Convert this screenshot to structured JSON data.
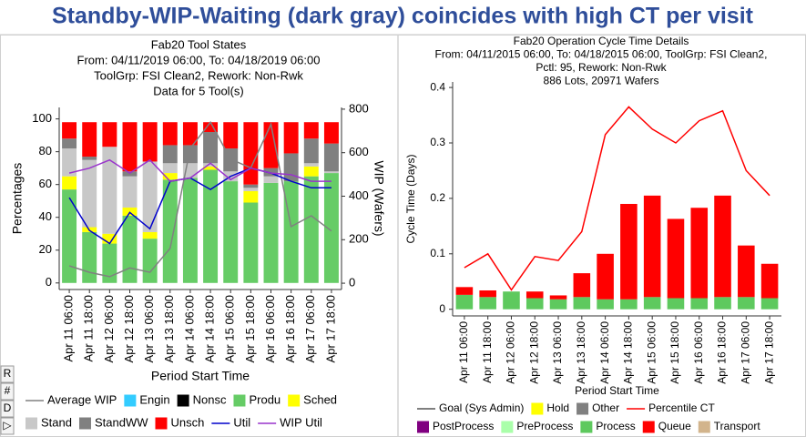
{
  "header": {
    "title": "Standby-WIP-Waiting (dark gray) coincides with high CT per visit"
  },
  "toolbar": [
    "R",
    "#",
    "D",
    "▷"
  ],
  "chart_data": [
    {
      "type": "bar",
      "stacked": true,
      "title_lines": [
        "Fab20 Tool States",
        "From: 04/11/2019 06:00, To: 04/18/2019 06:00",
        "ToolGrp: FSI Clean2, Rework: Non-Rwk",
        "Data for 5 Tool(s)"
      ],
      "xlabel": "Period Start Time",
      "ylabel": "Percentages",
      "y2label": "WIP (Wafers)",
      "categories": [
        "Apr 11 06:00",
        "Apr 11 18:00",
        "Apr 12 06:00",
        "Apr 12 18:00",
        "Apr 13 06:00",
        "Apr 13 18:00",
        "Apr 14 06:00",
        "Apr 14 18:00",
        "Apr 15 06:00",
        "Apr 15 18:00",
        "Apr 16 06:00",
        "Apr 16 18:00",
        "Apr 17 06:00",
        "Apr 17 18:00"
      ],
      "ylim": [
        -4,
        107
      ],
      "yticks": [
        0,
        20,
        40,
        60,
        80,
        100
      ],
      "y2lim": [
        -29,
        808
      ],
      "y2ticks": [
        0,
        200,
        400,
        600,
        800
      ],
      "series": [
        {
          "name": "Average WIP",
          "kind": "line",
          "axis": "y2",
          "color": "#808080",
          "values": [
            80,
            50,
            30,
            70,
            50,
            160,
            620,
            740,
            570,
            530,
            730,
            260,
            310,
            240
          ]
        },
        {
          "name": "Engin",
          "kind": "bar",
          "color": "#33ccff",
          "values": [
            0,
            0,
            0,
            0,
            0,
            0,
            0,
            0,
            0,
            0,
            0,
            0,
            0,
            0
          ]
        },
        {
          "name": "Nonsc",
          "kind": "bar",
          "color": "#000000",
          "values": [
            0,
            0,
            0,
            0,
            0,
            0,
            0,
            0,
            0,
            0,
            0,
            0,
            0,
            0
          ]
        },
        {
          "name": "Produ",
          "kind": "bar",
          "color": "#66cc66",
          "values": [
            57,
            31,
            24,
            41,
            27,
            63,
            64,
            69,
            62,
            49,
            61,
            62,
            65,
            67
          ]
        },
        {
          "name": "Sched",
          "kind": "bar",
          "color": "#ffff00",
          "values": [
            8,
            3,
            6,
            5,
            4,
            4,
            0,
            2,
            0,
            7,
            0,
            0,
            6,
            0
          ]
        },
        {
          "name": "Stand",
          "kind": "bar",
          "color": "#c8c8c8",
          "values": [
            17,
            41,
            53,
            19,
            43,
            6,
            9,
            2,
            6,
            2,
            4,
            0,
            2,
            1
          ]
        },
        {
          "name": "StandWW",
          "kind": "bar",
          "color": "#808080",
          "values": [
            6,
            2,
            0,
            3,
            0,
            11,
            11,
            19,
            14,
            2,
            5,
            17,
            15,
            17
          ]
        },
        {
          "name": "Unsch",
          "kind": "bar",
          "color": "#ff0000",
          "values": [
            10,
            21,
            15,
            30,
            24,
            14,
            14,
            6,
            16,
            38,
            28,
            19,
            10,
            13
          ]
        },
        {
          "name": "Util",
          "kind": "line",
          "color": "#0000cc",
          "values": [
            52,
            32,
            24,
            43,
            33,
            62,
            64,
            57,
            65,
            70,
            67,
            62,
            58,
            58
          ]
        },
        {
          "name": "WIP Util",
          "kind": "line",
          "color": "#9933cc",
          "values": [
            67,
            70,
            75,
            67,
            75,
            62,
            64,
            73,
            63,
            70,
            67,
            66,
            62,
            62
          ]
        }
      ]
    },
    {
      "type": "bar",
      "stacked": true,
      "title_lines": [
        "Fab20 Operation Cycle Time Details",
        "From: 04/11/2015 06:00, To: 04/18/2015 06:00, ToolGrp: FSI Clean2,",
        "Pctl: 95, Rework: Non-Rwk",
        "886 Lots, 20971 Wafers"
      ],
      "xlabel": "Period Start Time",
      "ylabel": "Cycle Time (Days)",
      "categories": [
        "Apr 11 06:00",
        "Apr 11 18:00",
        "Apr 12 06:00",
        "Apr 12 18:00",
        "Apr 13 06:00",
        "Apr 13 18:00",
        "Apr 14 06:00",
        "Apr 14 18:00",
        "Apr 15 06:00",
        "Apr 15 18:00",
        "Apr 16 06:00",
        "Apr 16 18:00",
        "Apr 17 06:00",
        "Apr 17 18:00"
      ],
      "ylim": [
        -0.012,
        0.41
      ],
      "yticks": [
        0,
        0.1,
        0.2,
        0.3,
        0.4
      ],
      "series": [
        {
          "name": "Goal (Sys Admin)",
          "kind": "line",
          "color": "#555555",
          "values": [
            null,
            null,
            null,
            null,
            null,
            null,
            null,
            null,
            null,
            null,
            null,
            null,
            null,
            null
          ]
        },
        {
          "name": "Hold",
          "kind": "bar",
          "color": "#ffff00",
          "values": [
            0,
            0,
            0,
            0,
            0,
            0,
            0,
            0,
            0,
            0,
            0,
            0,
            0,
            0
          ]
        },
        {
          "name": "Other",
          "kind": "bar",
          "color": "#808080",
          "values": [
            0,
            0,
            0,
            0,
            0,
            0,
            0,
            0,
            0,
            0,
            0,
            0,
            0,
            0
          ]
        },
        {
          "name": "Percentile CT",
          "kind": "line",
          "color": "#ff0000",
          "values": [
            0.075,
            0.1,
            0.035,
            0.095,
            0.088,
            0.14,
            0.315,
            0.365,
            0.325,
            0.3,
            0.34,
            0.358,
            0.25,
            0.205
          ]
        },
        {
          "name": "PostProcess",
          "kind": "bar",
          "color": "#800080",
          "values": [
            0,
            0,
            0,
            0,
            0,
            0,
            0,
            0,
            0,
            0,
            0,
            0,
            0,
            0
          ]
        },
        {
          "name": "PreProcess",
          "kind": "bar",
          "color": "#aaffaa",
          "values": [
            0,
            0,
            0,
            0,
            0,
            0,
            0,
            0,
            0,
            0,
            0,
            0,
            0,
            0
          ]
        },
        {
          "name": "Process",
          "kind": "bar",
          "color": "#5ec95e",
          "values": [
            0.026,
            0.022,
            0.032,
            0.02,
            0.018,
            0.022,
            0.018,
            0.018,
            0.022,
            0.02,
            0.02,
            0.022,
            0.022,
            0.02
          ]
        },
        {
          "name": "Queue",
          "kind": "bar",
          "color": "#ff0000",
          "values": [
            0.014,
            0.012,
            0,
            0.012,
            0.007,
            0.043,
            0.082,
            0.172,
            0.183,
            0.143,
            0.163,
            0.183,
            0.093,
            0.062
          ]
        },
        {
          "name": "Transport",
          "kind": "bar",
          "color": "#d2b48c",
          "values": [
            0,
            0,
            0,
            0,
            0,
            0,
            0,
            0,
            0,
            0,
            0,
            0,
            0,
            0
          ]
        }
      ]
    }
  ]
}
